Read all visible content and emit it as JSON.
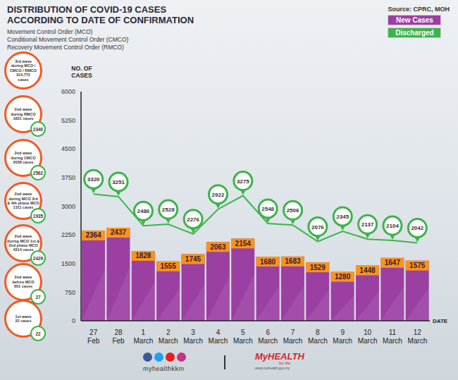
{
  "chart_data": {
    "type": "bar",
    "title": "DISTRIBUTION OF COVID-19 CASES ACCORDING TO DATE OF CONFIRMATION",
    "subtitle": [
      "Movement Control Order (MCO)",
      "Conditional Movement Control Order (CMCO)",
      "Recovery Movement Control Order (RMCO)"
    ],
    "source": "Source: CPRC, MOH",
    "y_label": "NO. OF CASES",
    "x_label": "DATE",
    "categories": [
      "27 Feb",
      "28 Feb",
      "1 March",
      "2 March",
      "3 March",
      "4 March",
      "5 March",
      "6 March",
      "7 March",
      "8 March",
      "9 March",
      "10 March",
      "11 March",
      "12 March"
    ],
    "series": [
      {
        "name": "New Cases",
        "type": "bar",
        "color": "#9b3fa3",
        "values": [
          2364,
          2437,
          1828,
          1555,
          1745,
          2063,
          2154,
          1680,
          1683,
          1529,
          1280,
          1448,
          1647,
          1575
        ]
      },
      {
        "name": "Discharged",
        "type": "line",
        "color": "#3cb44a",
        "marker": "pin",
        "values": [
          3320,
          3251,
          2486,
          2528,
          2276,
          2922,
          3275,
          2548,
          2506,
          2076,
          2345,
          2137,
          2104,
          2042
        ]
      }
    ],
    "ylim": [
      0,
      6000
    ],
    "yticks": [
      0,
      750,
      1500,
      2250,
      3000,
      3750,
      4500,
      5250,
      6000
    ],
    "grid": false,
    "legend": "upper right",
    "data_labels": true,
    "annotations": [
      {
        "text": [
          "3rd wave",
          "during MCO /",
          "CMCO / RMCO",
          "310,772",
          "cases"
        ]
      },
      {
        "text": [
          "2nd wave",
          "during RMCO",
          "1831 cases"
        ],
        "discharged": 2340
      },
      {
        "text": [
          "2nd wave",
          "during CMCO",
          "2038 cases"
        ],
        "discharged": 2562
      },
      {
        "text": [
          "2nd wave",
          "during MCO 3rd",
          "& 4th phase MCO",
          "1311 cases"
        ],
        "discharged": 1935
      },
      {
        "text": [
          "2nd wave",
          "during MCO 1st &",
          "2nd phase MCO",
          "4314 cases"
        ],
        "discharged": 2429
      },
      {
        "text": [
          "2nd wave",
          "before MCO",
          "651 cases"
        ],
        "discharged": 27
      },
      {
        "text": [
          "1st wave",
          "22 cases"
        ],
        "discharged": 22
      }
    ],
    "footer": {
      "social": "myhealthkkm",
      "logo": "MyHEALTH",
      "tagline": "for life",
      "url": "www.myhealth.gov.my"
    }
  }
}
